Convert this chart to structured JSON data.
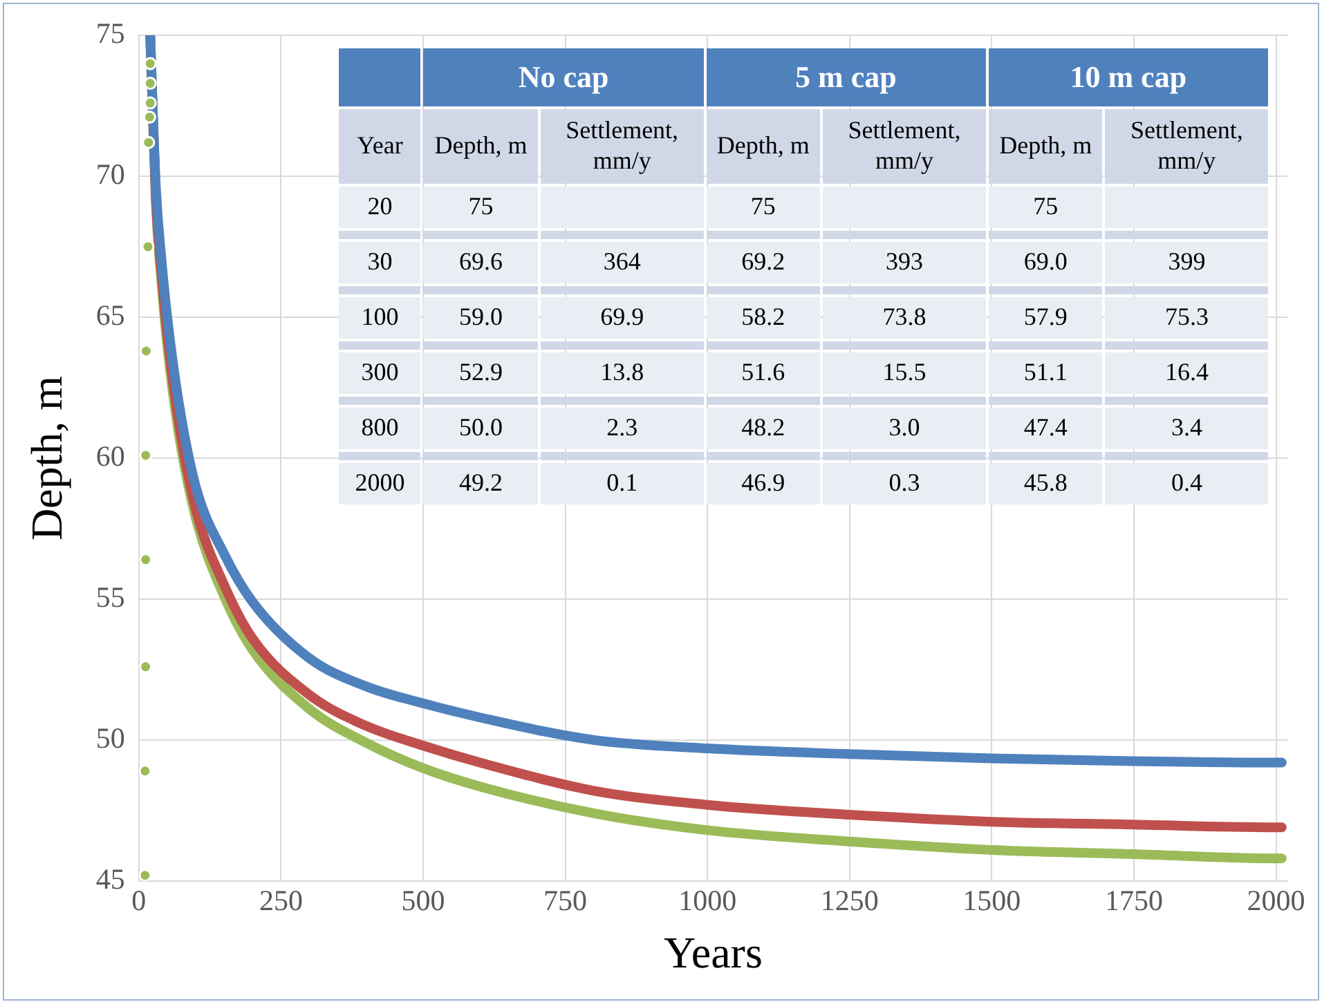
{
  "chart_data": {
    "type": "line",
    "xlabel": "Years",
    "ylabel": "Depth, m",
    "xlim": [
      0,
      2020
    ],
    "xticks": [
      0,
      250,
      500,
      750,
      1000,
      1250,
      1500,
      1750,
      2000
    ],
    "ylim": [
      45,
      75
    ],
    "yticks": [
      45,
      50,
      55,
      60,
      65,
      70,
      75
    ],
    "grid": true,
    "legend": false,
    "marker": "none",
    "series": [
      {
        "color": "#4f81bd",
        "x": [
          20,
          30,
          40,
          50,
          70,
          100,
          150,
          200,
          300,
          400,
          500,
          600,
          800,
          1000,
          1250,
          1500,
          1750,
          2000,
          2010
        ],
        "values": [
          75,
          69.6,
          67.0,
          65.0,
          62.0,
          59.0,
          56.6,
          54.9,
          52.9,
          51.9,
          51.3,
          50.8,
          50.0,
          49.7,
          49.5,
          49.35,
          49.25,
          49.2,
          49.2
        ]
      },
      {
        "color": "#c0504d",
        "x": [
          20,
          30,
          40,
          50,
          70,
          100,
          150,
          200,
          300,
          400,
          500,
          600,
          800,
          1000,
          1250,
          1500,
          1750,
          2000,
          2010
        ],
        "values": [
          75,
          69.2,
          66.5,
          64.4,
          61.3,
          58.2,
          55.5,
          53.6,
          51.6,
          50.5,
          49.8,
          49.2,
          48.2,
          47.7,
          47.35,
          47.1,
          47.0,
          46.9,
          46.9
        ]
      },
      {
        "color": "#9bbb59",
        "x": [
          20,
          30,
          40,
          50,
          70,
          100,
          150,
          200,
          300,
          400,
          500,
          600,
          800,
          1000,
          1250,
          1500,
          1750,
          2000,
          2010
        ],
        "values": [
          75,
          69.0,
          66.2,
          64.0,
          60.9,
          57.9,
          55.1,
          53.2,
          51.1,
          49.9,
          49.0,
          48.35,
          47.4,
          46.8,
          46.4,
          46.1,
          45.95,
          45.8,
          45.8
        ]
      },
      {
        "type": "scatter",
        "marker": "circle",
        "color": "#9bbb59",
        "x": [
          11,
          11,
          12,
          12,
          12,
          13,
          16,
          17,
          19,
          20,
          20,
          20
        ],
        "values": [
          45.2,
          48.9,
          52.6,
          56.4,
          60.1,
          63.8,
          67.5,
          71.2,
          72.1,
          72.6,
          73.3,
          74.0
        ]
      }
    ],
    "annotations": [
      "No cap",
      "5 m cap",
      "10 m cap",
      "Year",
      "Depth, m",
      "Settlement, mm/y",
      "Depth, m",
      "Settlement, mm/y",
      "Depth, m",
      "Settlement, mm/y",
      "20",
      "75",
      null,
      "75",
      null,
      "75",
      null,
      "30",
      "69.6",
      "364",
      "69.2",
      "393",
      "69.0",
      "399",
      "100",
      "59.0",
      "69.9",
      "58.2",
      "73.8",
      "57.9",
      "75.3",
      "300",
      "52.9",
      "13.8",
      "51.6",
      "15.5",
      "51.1",
      "16.4",
      "800",
      "50.0",
      "2.3",
      "48.2",
      "3.0",
      "47.4",
      "3.4",
      "2000",
      "49.2",
      "0.1",
      "46.9",
      "0.3",
      "45.8",
      "0.4"
    ]
  }
}
